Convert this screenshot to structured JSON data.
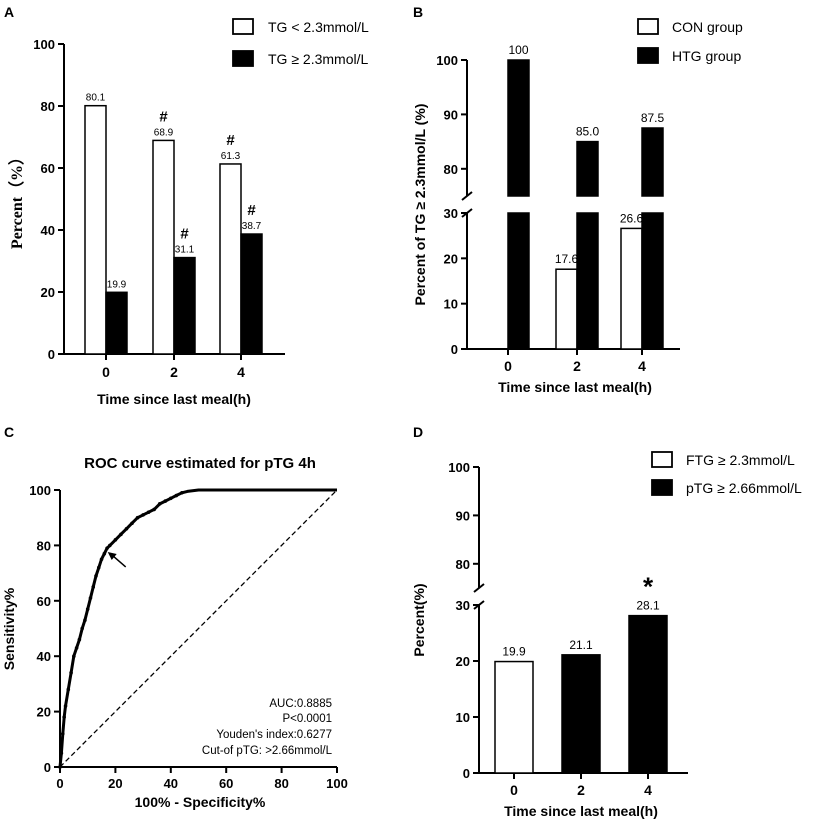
{
  "chart_data": [
    {
      "panel": "A",
      "type": "bar",
      "title": "",
      "xlabel": "Time since last meal(h)",
      "ylabel": "Percent（%）",
      "categories": [
        "0",
        "2",
        "4"
      ],
      "ylim": [
        0,
        100
      ],
      "yticks": [
        "0",
        "20",
        "40",
        "60",
        "80",
        "100"
      ],
      "series": [
        {
          "name": "TG < 2.3mmol/L",
          "fill": "#ffffff",
          "values": [
            80.1,
            68.9,
            61.3
          ],
          "labels": [
            "80.1",
            "68.9",
            "61.3"
          ],
          "marks": [
            "",
            "#",
            "#"
          ]
        },
        {
          "name": "TG ≥ 2.3mmol/L",
          "fill": "#000000",
          "values": [
            19.9,
            31.1,
            38.7
          ],
          "labels": [
            "19.9",
            "31.1",
            "38.7"
          ],
          "marks": [
            "",
            "#",
            "#"
          ]
        }
      ]
    },
    {
      "panel": "B",
      "type": "bar",
      "xlabel": "Time since last meal(h)",
      "ylabel": "Percent of TG ≥ 2.3mmol/L (%)",
      "categories": [
        "0",
        "2",
        "4"
      ],
      "axis_break": {
        "lower": [
          0,
          30
        ],
        "upper": [
          75,
          100
        ]
      },
      "yticks_lower": [
        "0",
        "10",
        "20",
        "30"
      ],
      "yticks_upper": [
        "80",
        "90",
        "100"
      ],
      "series": [
        {
          "name": "CON group",
          "fill": "#ffffff",
          "values": [
            null,
            17.6,
            26.6
          ],
          "labels": [
            "",
            "17.6",
            "26.6"
          ]
        },
        {
          "name": "HTG group",
          "fill": "#000000",
          "values": [
            100,
            85.0,
            87.5
          ],
          "labels": [
            "100",
            "85.0",
            "87.5"
          ]
        }
      ]
    },
    {
      "panel": "C",
      "type": "line",
      "title": "ROC curve estimated for pTG 4h",
      "xlabel": "100% - Specificity%",
      "ylabel": "Sensitivity%",
      "xlim": [
        0,
        100
      ],
      "ylim": [
        0,
        100
      ],
      "xticks": [
        "0",
        "20",
        "40",
        "60",
        "80",
        "100"
      ],
      "yticks": [
        "0",
        "20",
        "40",
        "60",
        "80",
        "100"
      ],
      "x": [
        0,
        0.5,
        1,
        1.5,
        2,
        3,
        4,
        5,
        6,
        7,
        8,
        9,
        10,
        11,
        12,
        13,
        14,
        15,
        16,
        17,
        18,
        20,
        22,
        24,
        26,
        28,
        30,
        32,
        34,
        36,
        38,
        40,
        42,
        44,
        46,
        50,
        55,
        60,
        70,
        80,
        90,
        100
      ],
      "y": [
        0,
        5,
        12,
        18,
        22,
        28,
        34,
        40,
        43,
        46,
        50,
        53,
        57,
        61,
        65,
        69,
        72,
        75,
        77,
        79,
        80,
        82,
        84,
        86,
        88,
        90,
        91,
        92,
        93,
        95,
        96,
        97,
        98,
        99,
        99.5,
        100,
        100,
        100,
        100,
        100,
        100,
        100
      ],
      "reference_line": {
        "x": [
          0,
          100
        ],
        "y": [
          0,
          100
        ],
        "style": "dashed"
      },
      "arrow_point": {
        "x": 16.5,
        "y": 78
      },
      "annotations": [
        "AUC:0.8885",
        "P<0.0001",
        "Youden's index:0.6277",
        "Cut-of pTG: >2.66mmol/L"
      ]
    },
    {
      "panel": "D",
      "type": "bar",
      "xlabel": "Time since last meal(h)",
      "ylabel": "Percent(%)",
      "categories": [
        "0",
        "2",
        "4"
      ],
      "axis_break": {
        "lower": [
          0,
          30
        ],
        "upper": [
          75,
          100
        ]
      },
      "yticks_lower": [
        "0",
        "10",
        "20",
        "30"
      ],
      "yticks_upper": [
        "80",
        "90",
        "100"
      ],
      "legend": [
        {
          "name": "FTG ≥ 2.3mmol/L",
          "fill": "#ffffff"
        },
        {
          "name": "pTG ≥ 2.66mmol/L",
          "fill": "#000000"
        }
      ],
      "bars": [
        {
          "category": "0",
          "value": 19.9,
          "label": "19.9",
          "fill": "#ffffff",
          "mark": ""
        },
        {
          "category": "2",
          "value": 21.1,
          "label": "21.1",
          "fill": "#000000",
          "mark": ""
        },
        {
          "category": "4",
          "value": 28.1,
          "label": "28.1",
          "fill": "#000000",
          "mark": "*"
        }
      ]
    }
  ],
  "panel_labels": [
    "A",
    "B",
    "C",
    "D"
  ]
}
